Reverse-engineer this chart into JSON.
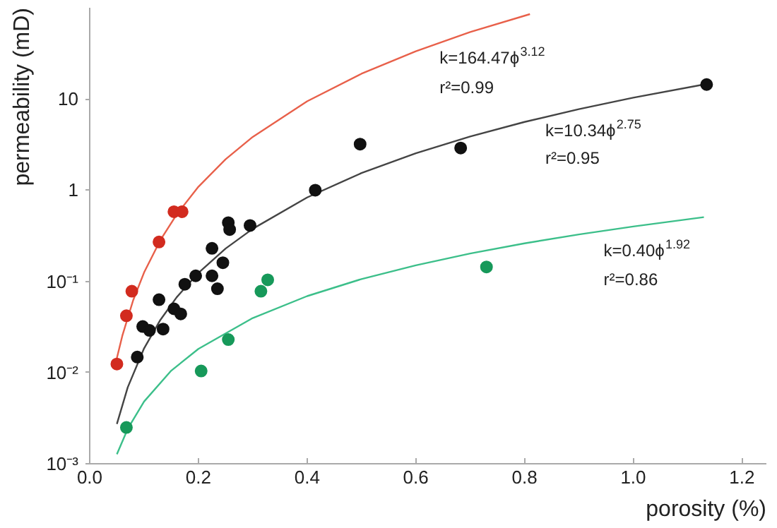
{
  "chart_data": {
    "type": "scatter",
    "xlabel": "porosity (%)",
    "ylabel": "permeability (mD)",
    "log": "y",
    "grid": false,
    "marker": "circle",
    "xlim": [
      0,
      1.245
    ],
    "ylim": [
      0.001,
      100
    ],
    "xticks": [
      {
        "value": 0,
        "label": "0.0"
      },
      0.2,
      0.4,
      0.6,
      0.8,
      {
        "value": 1,
        "label": "1.0"
      },
      1.2
    ],
    "yticks": [
      {
        "value": 0.001,
        "label": "10⁻³"
      },
      {
        "value": 0.01,
        "label": "10⁻²"
      },
      {
        "value": 0.1,
        "label": "10⁻¹"
      },
      1,
      10
    ],
    "series": [
      {
        "type": "line",
        "marker": "none",
        "color": "#e8604a",
        "x": [
          0.05,
          0.06,
          0.08,
          0.1,
          0.13,
          0.16,
          0.2,
          0.25,
          0.3,
          0.4,
          0.5,
          0.6,
          0.7,
          0.81
        ],
        "values": [
          0.0144,
          0.0253,
          0.0622,
          0.125,
          0.283,
          0.541,
          1.09,
          2.18,
          3.84,
          9.43,
          18.9,
          33.4,
          54.1,
          85.2
        ]
      },
      {
        "type": "line",
        "marker": "none",
        "color": "#444444",
        "x": [
          0.05,
          0.07,
          0.1,
          0.13,
          0.16,
          0.2,
          0.25,
          0.3,
          0.4,
          0.5,
          0.6,
          0.7,
          0.8,
          0.9,
          1.0,
          1.14
        ],
        "values": [
          0.00273,
          0.0069,
          0.0184,
          0.0378,
          0.0669,
          0.124,
          0.229,
          0.377,
          0.832,
          1.54,
          2.54,
          3.88,
          5.6,
          7.74,
          10.34,
          14.8
        ]
      },
      {
        "type": "line",
        "marker": "none",
        "color": "#3cbf8a",
        "x": [
          0.05,
          0.07,
          0.1,
          0.15,
          0.2,
          0.3,
          0.4,
          0.5,
          0.6,
          0.7,
          0.8,
          0.9,
          1.0,
          1.13
        ],
        "values": [
          0.00127,
          0.00242,
          0.00481,
          0.0105,
          0.0182,
          0.0396,
          0.0689,
          0.106,
          0.15,
          0.202,
          0.261,
          0.327,
          0.4,
          0.506
        ]
      },
      {
        "color": "#d22b1f",
        "x": [
          0.05,
          0.0675,
          0.0775,
          0.1275,
          0.155,
          0.17
        ],
        "values": [
          0.0124,
          0.042,
          0.078,
          0.27,
          0.58,
          0.58
        ]
      },
      {
        "color": "#111111",
        "x": [
          0.0875,
          0.0975,
          0.11,
          0.1275,
          0.135,
          0.155,
          0.1675,
          0.175,
          0.195,
          0.225,
          0.235,
          0.245,
          0.225,
          0.255,
          0.2575,
          0.295,
          0.415,
          0.4975,
          0.6825,
          1.135
        ],
        "values": [
          0.0148,
          0.032,
          0.029,
          0.063,
          0.03,
          0.05,
          0.044,
          0.093,
          0.115,
          0.115,
          0.083,
          0.16,
          0.23,
          0.44,
          0.37,
          0.41,
          1.0,
          3.2,
          2.9,
          14.4
        ]
      },
      {
        "color": "#17995a",
        "x": [
          0.0675,
          0.205,
          0.255,
          0.315,
          0.3275,
          0.73
        ],
        "values": [
          0.0025,
          0.0104,
          0.023,
          0.078,
          0.104,
          0.144
        ]
      }
    ],
    "annotations": [
      "k=164.47ϕ$^{3.12}$",
      "r²=0.99",
      "k=10.34ϕ$^{2.75}$",
      "r²=0.95",
      "k=0.40ϕ$^{1.92}$",
      "r²=0.86"
    ]
  }
}
